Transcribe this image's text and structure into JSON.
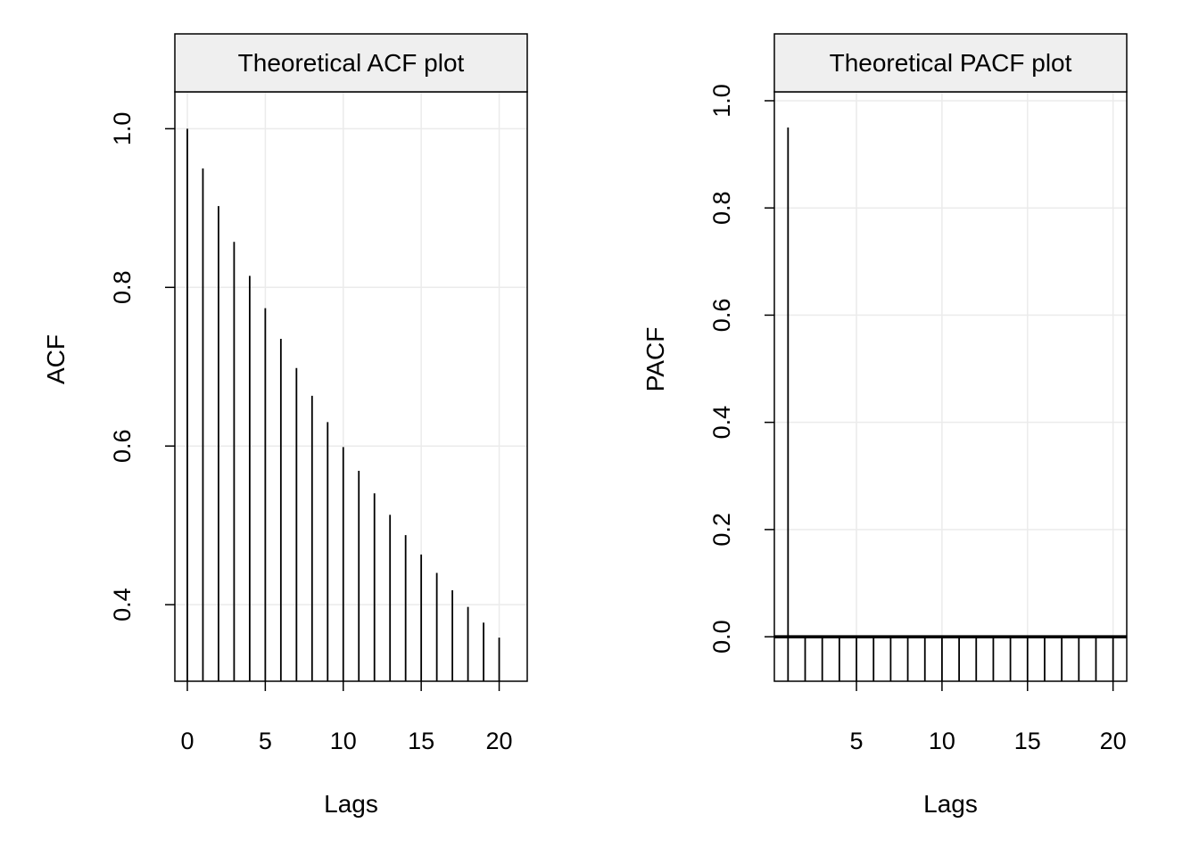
{
  "colors": {
    "strip_fill": "#efefef",
    "grid": "#ebebeb",
    "line": "#000000",
    "background": "#ffffff"
  },
  "chart_data": [
    {
      "type": "bar",
      "subtype": "lollipop-spikes",
      "title": "Theoretical ACF plot",
      "xlabel": "Lags",
      "ylabel": "ACF",
      "x": [
        0,
        1,
        2,
        3,
        4,
        5,
        6,
        7,
        8,
        9,
        10,
        11,
        12,
        13,
        14,
        15,
        16,
        17,
        18,
        19,
        20
      ],
      "values": [
        1.0,
        0.95,
        0.9025,
        0.8574,
        0.8145,
        0.7738,
        0.7351,
        0.6983,
        0.6634,
        0.6302,
        0.5987,
        0.5688,
        0.5404,
        0.5133,
        0.4877,
        0.4633,
        0.4401,
        0.4181,
        0.3972,
        0.3774,
        0.3585
      ],
      "xlim": [
        -0.8,
        21.8
      ],
      "ylim": [
        0.3035,
        1.0465
      ],
      "xticks": [
        0,
        5,
        10,
        15,
        20
      ],
      "yticks": [
        0.4,
        0.6,
        0.8,
        1.0
      ],
      "xtick_labels": [
        "0",
        "5",
        "10",
        "15",
        "20"
      ],
      "ytick_labels": [
        "0.4",
        "0.6",
        "0.8",
        "1.0"
      ],
      "grid": true,
      "baseline": null
    },
    {
      "type": "bar",
      "subtype": "lollipop-spikes",
      "title": "Theoretical PACF plot",
      "xlabel": "Lags",
      "ylabel": "PACF",
      "x": [
        1,
        2,
        3,
        4,
        5,
        6,
        7,
        8,
        9,
        10,
        11,
        12,
        13,
        14,
        15,
        16,
        17,
        18,
        19,
        20
      ],
      "values": [
        0.95,
        0,
        0,
        0,
        0,
        0,
        0,
        0,
        0,
        0,
        0,
        0,
        0,
        0,
        0,
        0,
        0,
        0,
        0,
        0
      ],
      "xlim": [
        0.2,
        20.8
      ],
      "ylim": [
        -0.083,
        1.0166
      ],
      "xticks": [
        5,
        10,
        15,
        20
      ],
      "yticks": [
        0.0,
        0.2,
        0.4,
        0.6,
        0.8,
        1.0
      ],
      "xtick_labels": [
        "5",
        "10",
        "15",
        "20"
      ],
      "ytick_labels": [
        "0.0",
        "0.2",
        "0.4",
        "0.6",
        "0.8",
        "1.0"
      ],
      "grid": true,
      "baseline": 0
    }
  ]
}
